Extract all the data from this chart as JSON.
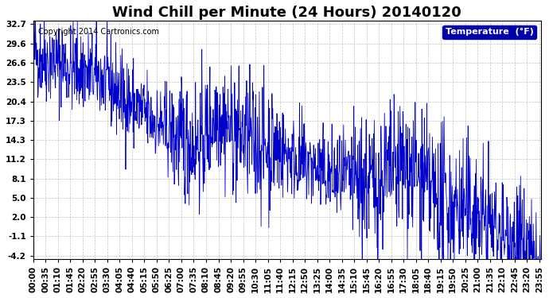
{
  "title": "Wind Chill per Minute (24 Hours) 20140120",
  "copyright_text": "Copyright 2014 Cartronics.com",
  "legend_label": "Temperature  (°F)",
  "yticks": [
    32.7,
    29.6,
    26.6,
    23.5,
    20.4,
    17.3,
    14.3,
    11.2,
    8.1,
    5.0,
    2.0,
    -1.1,
    -4.2
  ],
  "ymin": -4.2,
  "ymax": 32.7,
  "line_color": "#0000cc",
  "background_color": "#ffffff",
  "grid_color": "#aaaaaa",
  "title_fontsize": 13,
  "tick_fontsize": 7.5,
  "x_tick_interval_minutes": 35,
  "total_minutes": 1440,
  "seed": 42
}
